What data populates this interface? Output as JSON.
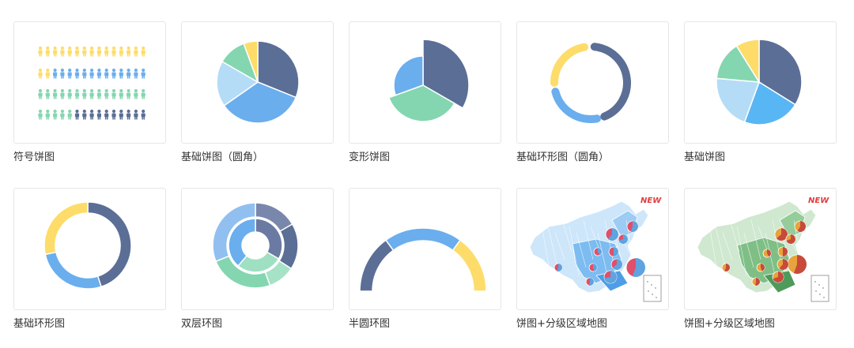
{
  "colors": {
    "dark": "#5b6e96",
    "blue": "#6aaeee",
    "green": "#84d6b0",
    "yellow": "#fddc6a",
    "lightblue": "#b5dcf6",
    "sky": "#58b6f4",
    "red": "#e0506a",
    "map_blue": "#9fcdf2",
    "map_green": "#a6d4a8",
    "new_red": "#e03c3c"
  },
  "cards": [
    {
      "name": "symbol-pie",
      "label": "符号饼图"
    },
    {
      "name": "basic-pie-rounded",
      "label": "基础饼图（圆角）"
    },
    {
      "name": "variant-pie",
      "label": "变形饼图"
    },
    {
      "name": "basic-ring-rounded",
      "label": "基础环形图（圆角）"
    },
    {
      "name": "basic-pie",
      "label": "基础饼图"
    },
    {
      "name": "basic-ring",
      "label": "基础环形图"
    },
    {
      "name": "double-ring",
      "label": "双层环图"
    },
    {
      "name": "semicircle-ring",
      "label": "半圆环图"
    },
    {
      "name": "pie-choropleth-map-1",
      "label": "饼图+分级区域地图",
      "badge": "NEW"
    },
    {
      "name": "pie-choropleth-map-2",
      "label": "饼图+分级区域地图",
      "badge": "NEW"
    }
  ]
}
